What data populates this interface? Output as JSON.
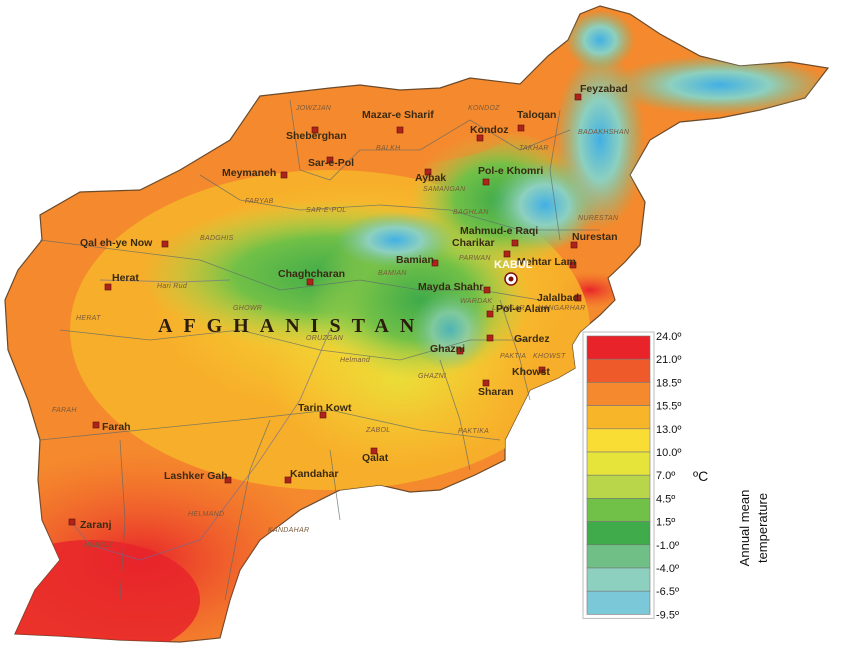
{
  "country": "AFGHANISTAN",
  "capital": "KABUL",
  "cities": [
    {
      "name": "Feyzabad"
    },
    {
      "name": "Mazar-e Sharif"
    },
    {
      "name": "Taloqan"
    },
    {
      "name": "Kondoz"
    },
    {
      "name": "Sheberghan"
    },
    {
      "name": "Sar-e-Pol"
    },
    {
      "name": "Aybak"
    },
    {
      "name": "Pol-e Khomri"
    },
    {
      "name": "Meymaneh"
    },
    {
      "name": "Mahmud-e Raqi"
    },
    {
      "name": "Charikar"
    },
    {
      "name": "Nurestan"
    },
    {
      "name": "Qal eh-ye Now"
    },
    {
      "name": "Bamian"
    },
    {
      "name": "Mehtar Lam"
    },
    {
      "name": "Herat"
    },
    {
      "name": "Chaghcharan"
    },
    {
      "name": "Mayda Shahr"
    },
    {
      "name": "Jalalbad"
    },
    {
      "name": "Pol-e Alam"
    },
    {
      "name": "Gardez"
    },
    {
      "name": "Ghazni"
    },
    {
      "name": "Khowst"
    },
    {
      "name": "Sharan"
    },
    {
      "name": "Tarin Kowt"
    },
    {
      "name": "Farah"
    },
    {
      "name": "Qalat"
    },
    {
      "name": "Lashker Gah"
    },
    {
      "name": "Kandahar"
    },
    {
      "name": "Zaranj"
    }
  ],
  "provinces": [
    "JOWZJAN",
    "KONDOZ",
    "BALKH",
    "TAKHAR",
    "BADAKHSHAN",
    "SAMANGAN",
    "FARYAB",
    "SAR-E-POL",
    "BAGHLAN",
    "NURESTAN",
    "BADGHIS",
    "PARWAN",
    "Hari Rud",
    "BAMIAN",
    "WARDAK",
    "HERAT",
    "GHOWR",
    "LOWGAR",
    "NANGARHAR",
    "ORUZGAN",
    "Helmand",
    "PAKTIA",
    "GHAZNI",
    "KHOWST",
    "FARAH",
    "ZABOL",
    "PAKTIKA",
    "HELMAND",
    "KANDAHAR",
    "NIMRUZ"
  ],
  "legend": {
    "title_line1": "Annual mean",
    "title_line2": "temperature",
    "unit": "ºC",
    "ticks": [
      "24.0º",
      "21.0º",
      "18.5º",
      "15.5º",
      "13.0º",
      "10.0º",
      "7.0º",
      "4.5º",
      "1.5º",
      "-1.0º",
      "-4.0º",
      "-6.5º",
      "-9.5º"
    ],
    "colors": [
      "#e8242a",
      "#ef5a2b",
      "#f5892d",
      "#f7b52a",
      "#f9dd34",
      "#e6e43a",
      "#b9d64a",
      "#71c047",
      "#3fab4a",
      "#6fbf87",
      "#8dd0bf",
      "#7ac8d8",
      "#42b0e4"
    ]
  }
}
